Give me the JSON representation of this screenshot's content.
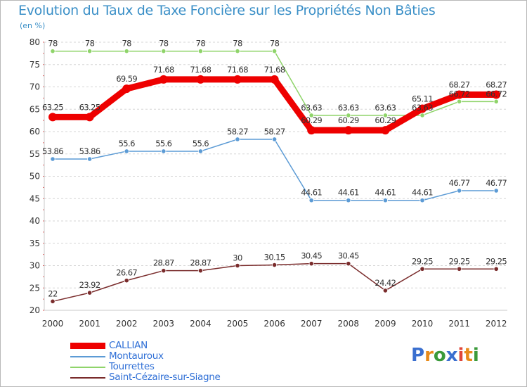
{
  "chart_data": {
    "type": "line",
    "title": "Evolution du Taux de Taxe Foncière sur les Propriétés Non Bâties",
    "ylabel": "(en %)",
    "xlabel": "",
    "x": [
      "2000",
      "2001",
      "2002",
      "2003",
      "2004",
      "2005",
      "2006",
      "2007",
      "2008",
      "2009",
      "2010",
      "2011",
      "2012"
    ],
    "ylim": [
      20,
      80
    ],
    "yticks": [
      20,
      25,
      30,
      35,
      40,
      45,
      50,
      55,
      60,
      65,
      70,
      75,
      80
    ],
    "grid": "horizontal dashed",
    "series": [
      {
        "name": "CALLIAN",
        "color": "#ee0000",
        "values": [
          63.25,
          63.25,
          69.59,
          71.68,
          71.68,
          71.68,
          71.68,
          60.29,
          60.29,
          60.29,
          65.11,
          68.27,
          68.27
        ],
        "labels": [
          "63.25",
          "63.25",
          "69.59",
          "71.68",
          "71.68",
          "71.68",
          "71.68",
          "60.29",
          "60.29",
          "60.29",
          "65.11",
          "68.27",
          "68.27"
        ]
      },
      {
        "name": "Montauroux",
        "color": "#5c9bd5",
        "values": [
          53.86,
          53.86,
          55.6,
          55.6,
          55.6,
          58.27,
          58.27,
          44.61,
          44.61,
          44.61,
          44.61,
          46.77,
          46.77
        ],
        "labels": [
          "53.86",
          "53.86",
          "55.6",
          "55.6",
          "55.6",
          "58.27",
          "58.27",
          "44.61",
          "44.61",
          "44.61",
          "44.61",
          "46.77",
          "46.77"
        ]
      },
      {
        "name": "Tourrettes",
        "color": "#8fd46a",
        "values": [
          78,
          78,
          78,
          78,
          78,
          78,
          78,
          63.63,
          63.63,
          63.63,
          63.63,
          66.72,
          66.72
        ],
        "labels": [
          "78",
          "78",
          "78",
          "78",
          "78",
          "78",
          "78",
          "63.63",
          "63.63",
          "63.63",
          "63.63",
          "66.72",
          "66.72"
        ]
      },
      {
        "name": "Saint-Cézaire-sur-Siagne",
        "color": "#7a2c2c",
        "values": [
          22,
          23.92,
          26.67,
          28.87,
          28.87,
          30,
          30.15,
          30.45,
          30.45,
          24.42,
          29.25,
          29.25,
          29.25
        ],
        "labels": [
          "22",
          "23.92",
          "26.67",
          "28.87",
          "28.87",
          "30",
          "30.15",
          "30.45",
          "30.45",
          "24.42",
          "29.25",
          "29.25",
          "29.25"
        ]
      }
    ]
  },
  "brand": {
    "text": "Proxiti",
    "letter_colors": [
      "#3a6fcf",
      "#e88b1a",
      "#3a9a3a",
      "#3a6fcf",
      "#e0473a",
      "#e88b1a",
      "#3a9a3a"
    ]
  }
}
